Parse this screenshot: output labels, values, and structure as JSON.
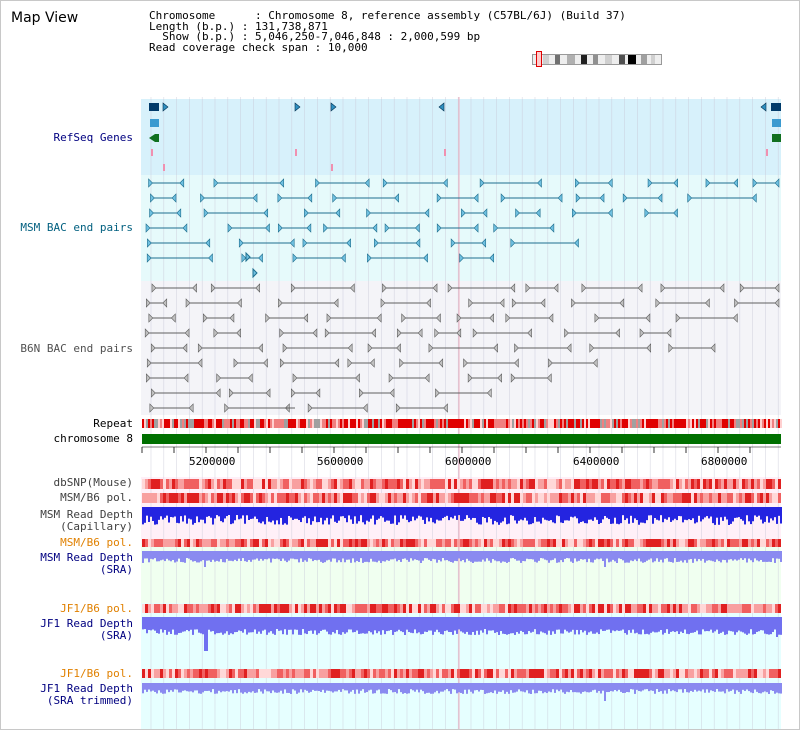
{
  "app": {
    "title": "Map View"
  },
  "info": {
    "chromosome_label": "Chromosome",
    "chromosome_value": "Chromosome 8, reference assembly (C57BL/6J) (Build 37)",
    "length_label": "Length (b.p.)",
    "length_value": "131,738,871",
    "show_label": "Show (b.p.)",
    "show_value": "5,046,250-7,046,848 : 2,000,599 bp",
    "span_label": "Read coverage check span",
    "span_value": "10,000"
  },
  "tracks": {
    "refseq": "RefSeq Genes",
    "msm_bac": "MSM BAC end pairs",
    "b6n_bac": "B6N BAC end pairs",
    "repeat": "Repeat",
    "chromosome": "chromosome 8",
    "dbsnp": "dbSNP(Mouse)",
    "msm_b6_pol": "MSM/B6 pol.",
    "msm_depth_cap_1": "MSM Read Depth",
    "msm_depth_cap_2": "(Capillary)",
    "msm_b6_pol_2": "MSM/B6 pol.",
    "msm_depth_sra_1": "MSM Read Depth",
    "msm_depth_sra_2": "(SRA)",
    "jf1_b6_pol": "JF1/B6 pol.",
    "jf1_depth_sra_1": "JF1 Read Depth",
    "jf1_depth_sra_2": "(SRA)",
    "jf1_b6_pol_2": "JF1/B6 pol.",
    "jf1_depth_trim_1": "JF1 Read Depth",
    "jf1_depth_trim_2": "(SRA trimmed)"
  },
  "axis": {
    "ticks": [
      "5200000",
      "5600000",
      "6000000",
      "6400000",
      "6800000"
    ]
  },
  "colors": {
    "refseq_bg": "#d7f1fb",
    "msm_bac_bg": "#e6fafb",
    "b6n_bac_bg": "#f3f3f7",
    "chromosome": "#007000",
    "repeat": "#e00000",
    "depth_blue": "#2020e0",
    "depth_light_blue": "#8080f0",
    "label_blue": "#000080",
    "label_orange": "#e08000",
    "label_teal": "#005f7f"
  }
}
